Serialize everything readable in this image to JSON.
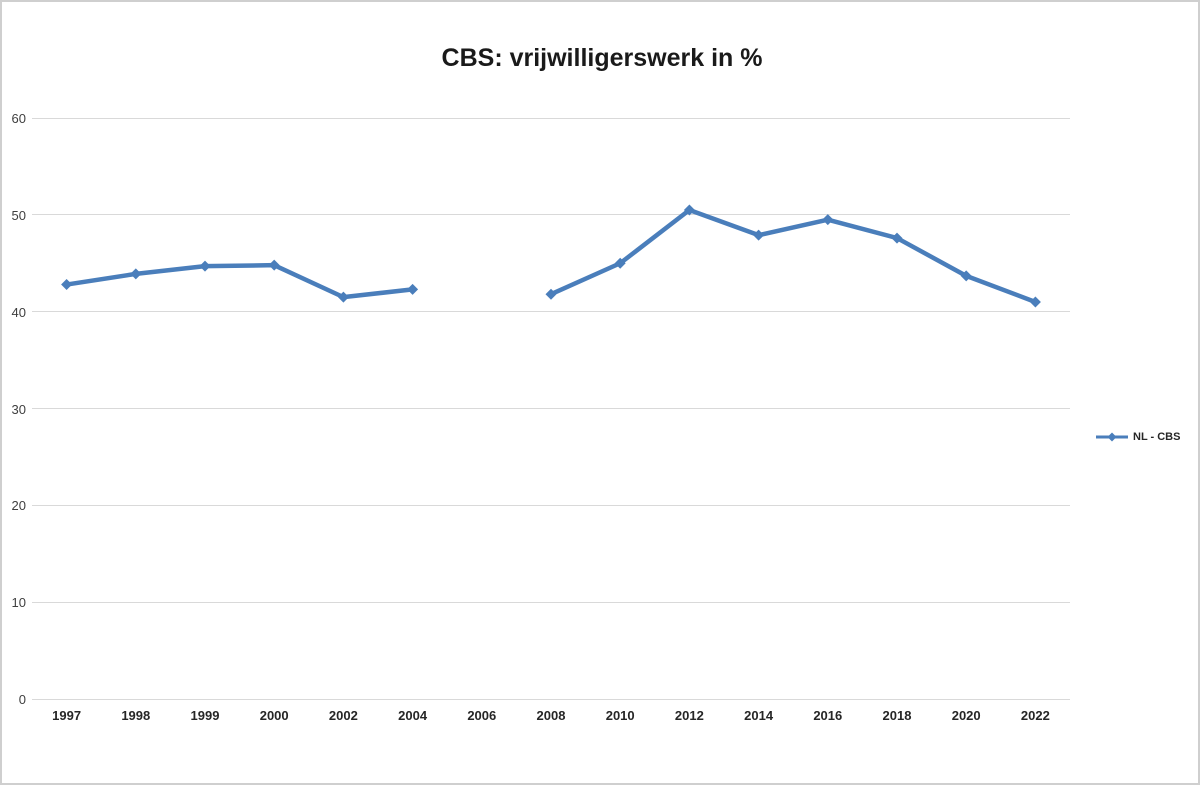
{
  "chart_data": {
    "type": "line",
    "title": "CBS: vrijwilligerswerk in %",
    "categories": [
      "1997",
      "1998",
      "1999",
      "2000",
      "2002",
      "2004",
      "2006",
      "2008",
      "2010",
      "2012",
      "2014",
      "2016",
      "2018",
      "2020",
      "2022"
    ],
    "series": [
      {
        "name": "NL - CBS",
        "values": [
          42.8,
          43.9,
          44.7,
          44.8,
          41.5,
          42.3,
          null,
          41.8,
          45.0,
          50.5,
          47.9,
          49.5,
          47.6,
          43.7,
          41.0
        ]
      }
    ],
    "xlabel": "",
    "ylabel": "",
    "ylim": [
      0,
      60
    ],
    "ytick_interval": 10,
    "yticks": [
      0,
      10,
      20,
      30,
      40,
      50,
      60
    ],
    "grid": true,
    "legend_position": "right",
    "marker": "diamond"
  },
  "colors": {
    "series_line": "#4a7ebb",
    "gridline": "#d9d9d9",
    "axis_text": "#3f3f3f",
    "title_text": "#1a1a1a",
    "chart_border": "#cfcfcf",
    "background": "#ffffff"
  },
  "legend": {
    "label": "NL - CBS"
  }
}
